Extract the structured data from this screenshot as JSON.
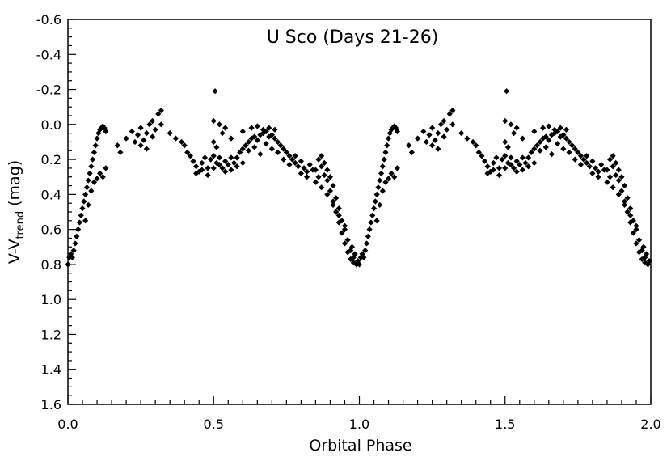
{
  "chart_data": {
    "type": "scatter",
    "title": "U Sco (Days 21-26)",
    "xlabel": "Orbital Phase",
    "ylabel": {
      "prefix": "V-V",
      "subscript": "trend",
      "suffix": " (mag)"
    },
    "xlim": [
      0,
      2
    ],
    "ylim": [
      1.6,
      -0.6
    ],
    "y_inverted": true,
    "x_ticks": [
      "0.0",
      "0.5",
      "1.0",
      "1.5",
      "2.0"
    ],
    "y_ticks": [
      "-0.6",
      "-0.4",
      "-0.2",
      "0.0",
      "0.2",
      "0.4",
      "0.6",
      "0.8",
      "1.0",
      "1.2",
      "1.4",
      "1.6"
    ],
    "grid": false,
    "marker": "diamond",
    "marker_color": "#000000",
    "repeats_with_period": 1.0,
    "series": [
      {
        "points": [
          [
            0.0,
            0.8
          ],
          [
            0.005,
            0.76
          ],
          [
            0.01,
            0.74
          ],
          [
            0.015,
            0.76
          ],
          [
            0.02,
            0.72
          ],
          [
            0.025,
            0.68
          ],
          [
            0.03,
            0.64
          ],
          [
            0.035,
            0.6
          ],
          [
            0.04,
            0.56
          ],
          [
            0.045,
            0.52
          ],
          [
            0.05,
            0.48
          ],
          [
            0.055,
            0.44
          ],
          [
            0.06,
            0.4
          ],
          [
            0.065,
            0.36
          ],
          [
            0.07,
            0.32
          ],
          [
            0.075,
            0.28
          ],
          [
            0.08,
            0.24
          ],
          [
            0.085,
            0.2
          ],
          [
            0.09,
            0.16
          ],
          [
            0.095,
            0.12
          ],
          [
            0.1,
            0.08
          ],
          [
            0.105,
            0.05
          ],
          [
            0.11,
            0.03
          ],
          [
            0.115,
            0.02
          ],
          [
            0.12,
            0.01
          ],
          [
            0.125,
            0.02
          ],
          [
            0.13,
            0.04
          ],
          [
            0.06,
            0.55
          ],
          [
            0.07,
            0.46
          ],
          [
            0.08,
            0.38
          ],
          [
            0.09,
            0.33
          ],
          [
            0.1,
            0.31
          ],
          [
            0.11,
            0.28
          ],
          [
            0.12,
            0.3
          ],
          [
            0.13,
            0.25
          ],
          [
            0.17,
            0.12
          ],
          [
            0.18,
            0.16
          ],
          [
            0.2,
            0.08
          ],
          [
            0.22,
            0.04
          ],
          [
            0.24,
            0.06
          ],
          [
            0.25,
            0.02
          ],
          [
            0.26,
            0.09
          ],
          [
            0.27,
            0.05
          ],
          [
            0.28,
            0.0
          ],
          [
            0.29,
            0.07
          ],
          [
            0.3,
            0.03
          ],
          [
            0.31,
            -0.06
          ],
          [
            0.32,
            -0.08
          ],
          [
            0.23,
            0.1
          ],
          [
            0.25,
            0.12
          ],
          [
            0.27,
            0.14
          ],
          [
            0.29,
            -0.02
          ],
          [
            0.32,
            0.0
          ],
          [
            0.35,
            0.05
          ],
          [
            0.37,
            0.08
          ],
          [
            0.39,
            0.1
          ],
          [
            0.4,
            0.12
          ],
          [
            0.41,
            0.16
          ],
          [
            0.42,
            0.18
          ],
          [
            0.43,
            0.21
          ],
          [
            0.44,
            0.24
          ],
          [
            0.45,
            0.27
          ],
          [
            0.46,
            0.22
          ],
          [
            0.47,
            0.19
          ],
          [
            0.48,
            0.25
          ],
          [
            0.49,
            0.2
          ],
          [
            0.5,
            0.18
          ],
          [
            0.51,
            0.22
          ],
          [
            0.52,
            0.19
          ],
          [
            0.53,
            0.25
          ],
          [
            0.54,
            0.27
          ],
          [
            0.55,
            0.23
          ],
          [
            0.56,
            0.26
          ],
          [
            0.57,
            0.22
          ],
          [
            0.58,
            0.19
          ],
          [
            0.59,
            0.16
          ],
          [
            0.6,
            0.14
          ],
          [
            0.61,
            0.12
          ],
          [
            0.62,
            0.1
          ],
          [
            0.63,
            0.08
          ],
          [
            0.64,
            0.07
          ],
          [
            0.65,
            0.09
          ],
          [
            0.66,
            0.06
          ],
          [
            0.67,
            0.05
          ],
          [
            0.68,
            0.04
          ],
          [
            0.69,
            0.07
          ],
          [
            0.7,
            0.06
          ],
          [
            0.71,
            0.08
          ],
          [
            0.72,
            0.1
          ],
          [
            0.73,
            0.12
          ],
          [
            0.74,
            0.14
          ],
          [
            0.75,
            0.16
          ],
          [
            0.76,
            0.18
          ],
          [
            0.77,
            0.2
          ],
          [
            0.78,
            0.22
          ],
          [
            0.79,
            0.24
          ],
          [
            0.8,
            0.21
          ],
          [
            0.81,
            0.25
          ],
          [
            0.82,
            0.27
          ],
          [
            0.83,
            0.23
          ],
          [
            0.84,
            0.26
          ],
          [
            0.44,
            0.28
          ],
          [
            0.46,
            0.26
          ],
          [
            0.48,
            0.29
          ],
          [
            0.5,
            0.25
          ],
          [
            0.52,
            0.23
          ],
          [
            0.54,
            0.21
          ],
          [
            0.56,
            0.19
          ],
          [
            0.58,
            0.24
          ],
          [
            0.6,
            0.22
          ],
          [
            0.62,
            0.15
          ],
          [
            0.64,
            0.13
          ],
          [
            0.66,
            0.17
          ],
          [
            0.68,
            0.11
          ],
          [
            0.7,
            0.14
          ],
          [
            0.72,
            0.16
          ],
          [
            0.74,
            0.2
          ],
          [
            0.76,
            0.23
          ],
          [
            0.78,
            0.18
          ],
          [
            0.8,
            0.28
          ],
          [
            0.82,
            0.3
          ],
          [
            0.5,
            0.1
          ],
          [
            0.51,
            0.13
          ],
          [
            0.52,
            0.0
          ],
          [
            0.53,
            0.05
          ],
          [
            0.54,
            0.02
          ],
          [
            0.56,
            0.08
          ],
          [
            0.6,
            0.04
          ],
          [
            0.63,
            0.02
          ],
          [
            0.65,
            0.01
          ],
          [
            0.67,
            0.03
          ],
          [
            0.69,
            0.02
          ],
          [
            0.71,
            0.03
          ],
          [
            0.505,
            -0.19
          ],
          [
            0.5,
            -0.02
          ],
          [
            0.85,
            0.26
          ],
          [
            0.86,
            0.3
          ],
          [
            0.87,
            0.24
          ],
          [
            0.88,
            0.29
          ],
          [
            0.89,
            0.32
          ],
          [
            0.9,
            0.38
          ],
          [
            0.91,
            0.44
          ],
          [
            0.92,
            0.5
          ],
          [
            0.93,
            0.56
          ],
          [
            0.94,
            0.62
          ],
          [
            0.95,
            0.68
          ],
          [
            0.96,
            0.73
          ],
          [
            0.97,
            0.77
          ],
          [
            0.98,
            0.79
          ],
          [
            0.99,
            0.8
          ],
          [
            0.86,
            0.2
          ],
          [
            0.87,
            0.18
          ],
          [
            0.88,
            0.22
          ],
          [
            0.89,
            0.26
          ],
          [
            0.9,
            0.3
          ],
          [
            0.91,
            0.35
          ],
          [
            0.92,
            0.42
          ],
          [
            0.93,
            0.48
          ],
          [
            0.94,
            0.55
          ],
          [
            0.95,
            0.6
          ],
          [
            0.96,
            0.66
          ],
          [
            0.97,
            0.72
          ],
          [
            0.98,
            0.76
          ],
          [
            0.85,
            0.33
          ],
          [
            0.87,
            0.36
          ],
          [
            0.89,
            0.4
          ],
          [
            0.91,
            0.46
          ],
          [
            0.93,
            0.52
          ],
          [
            0.95,
            0.58
          ],
          [
            0.975,
            0.7
          ],
          [
            0.985,
            0.74
          ],
          [
            0.995,
            0.78
          ]
        ]
      }
    ]
  }
}
